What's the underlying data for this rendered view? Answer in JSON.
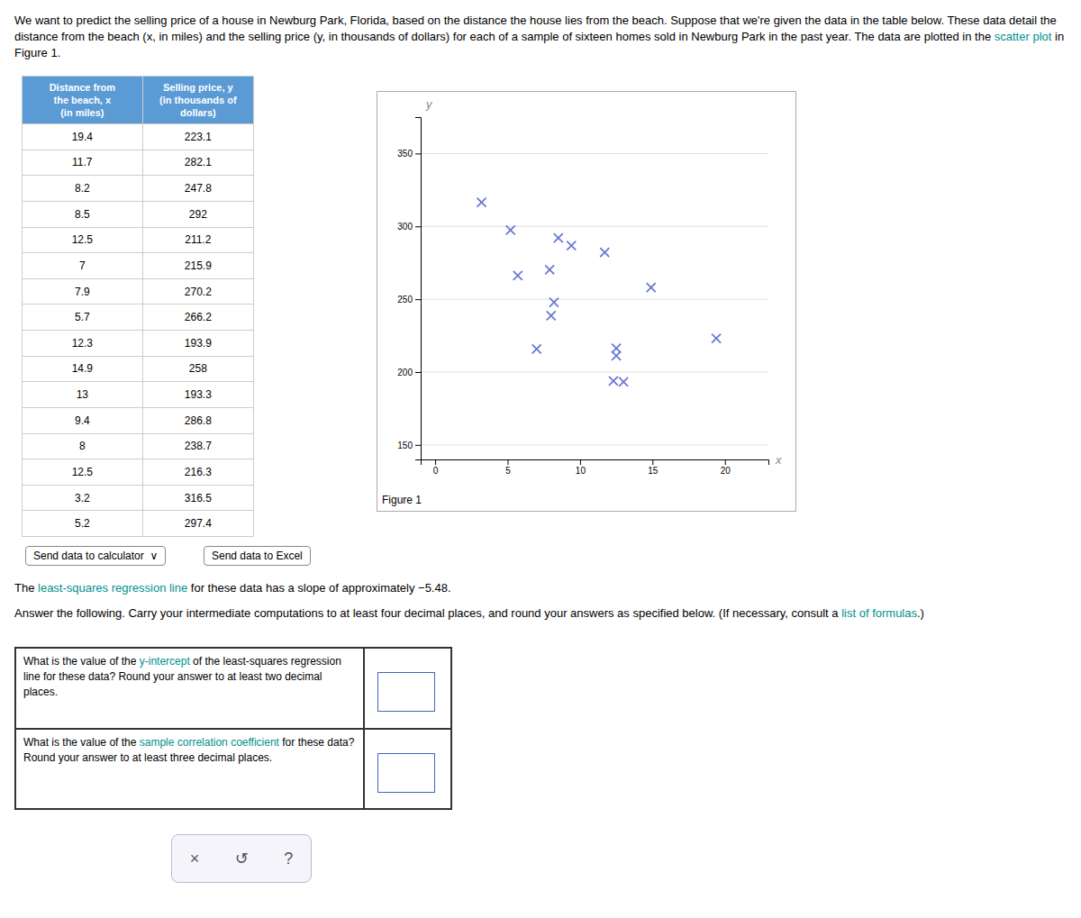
{
  "chart_data": {
    "type": "scatter",
    "x": [
      19.4,
      11.7,
      8.2,
      8.5,
      12.5,
      7.0,
      7.9,
      5.7,
      12.3,
      14.9,
      13.0,
      9.4,
      8.0,
      12.5,
      3.2,
      5.2
    ],
    "values": [
      223.1,
      282.1,
      247.8,
      292.0,
      211.2,
      215.9,
      270.2,
      266.2,
      193.9,
      258.0,
      193.3,
      286.8,
      238.7,
      216.3,
      316.5,
      297.4
    ],
    "color": "#6b78d4",
    "marker": "x",
    "xlabel": "x",
    "ylabel": "y",
    "xlim": [
      -1,
      23
    ],
    "ylim": [
      140,
      375
    ],
    "xticks": [
      0,
      5,
      10,
      15,
      20
    ],
    "yticks": [
      150,
      200,
      250,
      300,
      350
    ],
    "grid": "y",
    "annotations": [
      "Figure 1"
    ]
  },
  "page": {
    "text_color": "#000000",
    "link_color": "#009090",
    "header_color": "#5b9bd5",
    "header_text_color": "#ffffff",
    "intro": [
      {
        "text": "We want to predict the selling price of a house in Newburg Park, Florida, based on the distance the house lies from the beach. Suppose that we're given the data in the table below. These data detail the distance from the beach (x, in miles) and the selling price (y, in thousands of dollars) for each of a sample of sixteen homes sold in Newburg Park in the past year. The data are plotted in the "
      },
      {
        "text": "scatter plot",
        "link": true
      },
      {
        "text": " in Figure 1."
      }
    ],
    "table_headers": [
      "Distance from\nthe beach, x\n(in miles)",
      "Selling price, y\n(in thousands of\ndollars)"
    ],
    "buttons": [
      "Send data to calculator  ∨",
      "Send data to Excel"
    ],
    "slope": [
      {
        "text": "The "
      },
      {
        "text": "least-squares regression line",
        "link": true
      },
      {
        "text": " for these data has a slope of approximately "
      },
      {
        "text": "−5.48."
      }
    ],
    "instructions": [
      {
        "text": "Answer the following. Carry your intermediate computations to at least four decimal places, and round your answers as specified below. (If necessary, consult a "
      },
      {
        "text": "list of formulas",
        "link": true
      },
      {
        "text": ".)"
      }
    ],
    "questions": [
      [
        {
          "text": "What is the value of the "
        },
        {
          "text": "y-intercept",
          "link": true
        },
        {
          "text": " of the least-squares regression line for these data? Round your answer to at least two decimal places."
        }
      ],
      [
        {
          "text": "What is the value of the "
        },
        {
          "text": "sample correlation coefficient",
          "link": true
        },
        {
          "text": " for these data? Round your answer to at least three decimal places."
        }
      ]
    ],
    "controls": [
      "×",
      "↺",
      "?"
    ]
  }
}
